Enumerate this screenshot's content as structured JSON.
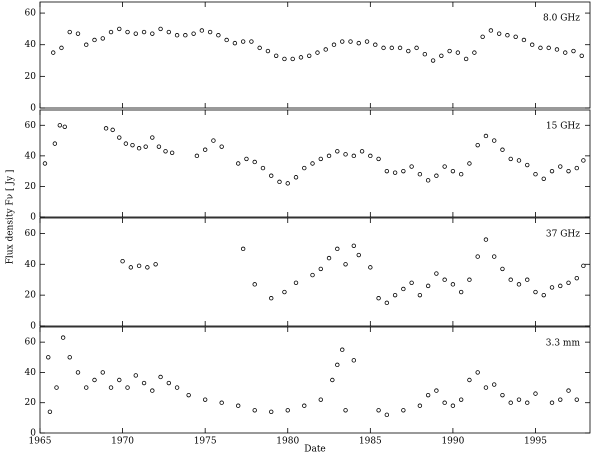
{
  "y_label": "Flux density Fν [ Jy ]",
  "chart_data": [
    {
      "type": "scatter",
      "annotation": "8.0 GHz",
      "color": "#000000",
      "xlim": [
        1965,
        1998.3
      ],
      "xticks": [
        1965,
        1970,
        1975,
        1980,
        1985,
        1990,
        1995
      ],
      "ylim": [
        0,
        67
      ],
      "yticks": [
        0,
        20,
        40,
        60
      ],
      "x": [
        1965.8,
        1966.3,
        1966.8,
        1967.3,
        1967.8,
        1968.3,
        1968.8,
        1969.3,
        1969.8,
        1970.3,
        1970.8,
        1971.3,
        1971.8,
        1972.3,
        1972.8,
        1973.3,
        1973.8,
        1974.3,
        1974.8,
        1975.3,
        1975.8,
        1976.3,
        1976.8,
        1977.3,
        1977.8,
        1978.3,
        1978.8,
        1979.3,
        1979.8,
        1980.3,
        1980.8,
        1981.3,
        1981.8,
        1982.3,
        1982.8,
        1983.3,
        1983.8,
        1984.3,
        1984.8,
        1985.3,
        1985.8,
        1986.3,
        1986.8,
        1987.3,
        1987.8,
        1988.3,
        1988.8,
        1989.3,
        1989.8,
        1990.3,
        1990.8,
        1991.3,
        1991.8,
        1992.3,
        1992.8,
        1993.3,
        1993.8,
        1994.3,
        1994.8,
        1995.3,
        1995.8,
        1996.3,
        1996.8,
        1997.3,
        1997.8
      ],
      "values": [
        35,
        38,
        48,
        47,
        40,
        43,
        44,
        48,
        50,
        48,
        47,
        48,
        47,
        50,
        48,
        46,
        46,
        47,
        49,
        48,
        46,
        43,
        41,
        42,
        42,
        38,
        36,
        33,
        31,
        31,
        32,
        33,
        35,
        37,
        40,
        42,
        42,
        41,
        42,
        40,
        38,
        38,
        38,
        36,
        38,
        34,
        30,
        33,
        36,
        35,
        31,
        35,
        45,
        49,
        47,
        46,
        45,
        43,
        40,
        38,
        38,
        37,
        35,
        36,
        33
      ]
    },
    {
      "type": "scatter",
      "annotation": "15 GHz",
      "color": "#000000",
      "xlim": [
        1965,
        1998.3
      ],
      "xticks": [
        1965,
        1970,
        1975,
        1980,
        1985,
        1990,
        1995
      ],
      "ylim": [
        0,
        70
      ],
      "yticks": [
        0,
        20,
        40,
        60
      ],
      "x": [
        1965.3,
        1965.9,
        1966.2,
        1966.5,
        1969.0,
        1969.4,
        1969.8,
        1970.2,
        1970.6,
        1971.0,
        1971.4,
        1971.8,
        1972.2,
        1972.6,
        1973.0,
        1974.5,
        1975.0,
        1975.5,
        1976.0,
        1977.0,
        1977.5,
        1978.0,
        1978.5,
        1979.0,
        1979.5,
        1980.0,
        1980.5,
        1981.0,
        1981.5,
        1982.0,
        1982.5,
        1983.0,
        1983.5,
        1984.0,
        1984.5,
        1985.0,
        1985.5,
        1986.0,
        1986.5,
        1987.0,
        1987.5,
        1988.0,
        1988.5,
        1989.0,
        1989.5,
        1990.0,
        1990.5,
        1991.0,
        1991.5,
        1992.0,
        1992.5,
        1993.0,
        1993.5,
        1994.0,
        1994.5,
        1995.0,
        1995.5,
        1996.0,
        1996.5,
        1997.0,
        1997.5,
        1997.9
      ],
      "values": [
        35,
        48,
        60,
        59,
        58,
        57,
        52,
        48,
        47,
        45,
        46,
        52,
        46,
        43,
        42,
        40,
        44,
        50,
        46,
        35,
        38,
        36,
        32,
        27,
        23,
        22,
        26,
        32,
        35,
        38,
        40,
        43,
        41,
        40,
        43,
        40,
        38,
        30,
        29,
        30,
        33,
        28,
        24,
        27,
        33,
        30,
        28,
        35,
        47,
        53,
        50,
        44,
        38,
        37,
        34,
        28,
        25,
        30,
        33,
        30,
        32,
        37
      ]
    },
    {
      "type": "scatter",
      "annotation": "37 GHz",
      "color": "#000000",
      "xlim": [
        1965,
        1998.3
      ],
      "xticks": [
        1965,
        1970,
        1975,
        1980,
        1985,
        1990,
        1995
      ],
      "ylim": [
        0,
        70
      ],
      "yticks": [
        0,
        20,
        40,
        60
      ],
      "x": [
        1970.0,
        1970.5,
        1971.0,
        1971.5,
        1972.0,
        1977.3,
        1978.0,
        1979.0,
        1979.8,
        1980.5,
        1981.5,
        1982.0,
        1982.5,
        1983.0,
        1983.5,
        1984.0,
        1984.3,
        1985.0,
        1985.5,
        1986.0,
        1986.5,
        1987.0,
        1987.5,
        1988.0,
        1988.5,
        1989.0,
        1989.5,
        1990.0,
        1990.5,
        1991.0,
        1991.5,
        1992.0,
        1992.5,
        1993.0,
        1993.5,
        1994.0,
        1994.5,
        1995.0,
        1995.5,
        1996.0,
        1996.5,
        1997.0,
        1997.5,
        1997.9
      ],
      "values": [
        42,
        38,
        39,
        38,
        40,
        50,
        27,
        18,
        22,
        28,
        33,
        37,
        44,
        50,
        40,
        52,
        46,
        38,
        18,
        15,
        20,
        24,
        28,
        20,
        26,
        34,
        30,
        27,
        22,
        30,
        45,
        56,
        45,
        37,
        30,
        27,
        30,
        22,
        20,
        25,
        26,
        28,
        31,
        39
      ]
    },
    {
      "type": "scatter",
      "annotation": "3.3 mm",
      "color": "#000000",
      "xlim": [
        1965,
        1998.3
      ],
      "xticks": [
        1965,
        1970,
        1975,
        1980,
        1985,
        1990,
        1995
      ],
      "ylim": [
        0,
        70
      ],
      "yticks": [
        0,
        20,
        40,
        60
      ],
      "x_label": "Date",
      "x": [
        1965.5,
        1965.6,
        1966.0,
        1966.4,
        1966.8,
        1967.3,
        1967.8,
        1968.3,
        1968.8,
        1969.3,
        1969.8,
        1970.3,
        1970.8,
        1971.3,
        1971.8,
        1972.3,
        1972.8,
        1973.3,
        1974.0,
        1975.0,
        1976.0,
        1977.0,
        1978.0,
        1979.0,
        1980.0,
        1981.0,
        1982.0,
        1982.7,
        1983.0,
        1983.3,
        1983.5,
        1984.0,
        1985.5,
        1986.0,
        1987.0,
        1988.0,
        1988.5,
        1989.0,
        1989.5,
        1990.0,
        1990.5,
        1991.0,
        1991.5,
        1992.0,
        1992.5,
        1993.0,
        1993.5,
        1994.0,
        1994.5,
        1995.0,
        1996.0,
        1996.5,
        1997.0,
        1997.5
      ],
      "values": [
        50,
        14,
        30,
        63,
        50,
        40,
        30,
        35,
        40,
        30,
        35,
        30,
        38,
        33,
        28,
        37,
        33,
        30,
        25,
        22,
        20,
        18,
        15,
        14,
        15,
        18,
        22,
        35,
        45,
        55,
        15,
        48,
        15,
        12,
        15,
        18,
        25,
        28,
        20,
        18,
        22,
        35,
        40,
        30,
        32,
        25,
        20,
        22,
        20,
        26,
        20,
        22,
        28,
        22
      ]
    }
  ]
}
